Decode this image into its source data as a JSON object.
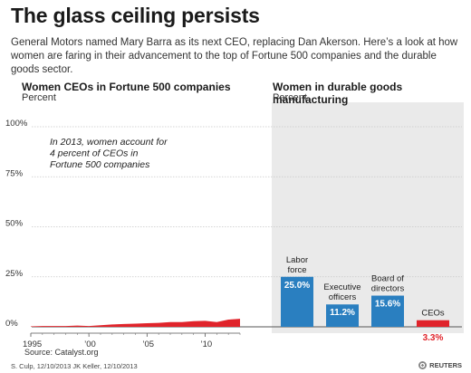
{
  "header": {
    "title": "The glass ceiling persists",
    "subtitle": "General Motors named Mary Barra as its next CEO, replacing Dan Akerson. Here’s a look at how women are faring in their advancement to the top of Fortune 500 companies and the durable goods sector."
  },
  "chart_data": [
    {
      "type": "area",
      "title": "Women CEOs in Fortune 500 companies",
      "ylabel": "Percent",
      "ylim": [
        0,
        100
      ],
      "yticks": [
        "0%",
        "25%",
        "50%",
        "75%",
        "100%"
      ],
      "xticks": [
        "1995",
        "’00",
        "’05",
        "’10"
      ],
      "x": [
        1995,
        1996,
        1997,
        1998,
        1999,
        2000,
        2001,
        2002,
        2003,
        2004,
        2005,
        2006,
        2007,
        2008,
        2009,
        2010,
        2011,
        2012,
        2013
      ],
      "values": [
        0.2,
        0.4,
        0.4,
        0.4,
        0.6,
        0.4,
        0.8,
        1.2,
        1.4,
        1.6,
        1.8,
        2.0,
        2.4,
        2.4,
        2.8,
        3.0,
        2.4,
        3.6,
        4.0
      ],
      "annotation": "In 2013, women account for 4 percent of CEOs in Fortune 500 companies",
      "color": "#e0242b"
    },
    {
      "type": "bar",
      "title": "Women in durable goods manufacturing",
      "ylabel": "Percent",
      "categories": [
        "Labor force",
        "Executive officers",
        "Board of directors",
        "CEOs"
      ],
      "values": [
        25.0,
        11.2,
        15.6,
        3.3
      ],
      "value_labels": [
        "25.0%",
        "11.2%",
        "15.6%",
        "3.3%"
      ],
      "colors": [
        "#2a7fc0",
        "#2a7fc0",
        "#2a7fc0",
        "#e0242b"
      ],
      "background": "#eaeaea"
    }
  ],
  "footer": {
    "source": "Source: Catalyst.org",
    "credit": "S. Culp, 12/10/2013    JK Keller, 12/10/2013",
    "logo": "REUTERS"
  }
}
